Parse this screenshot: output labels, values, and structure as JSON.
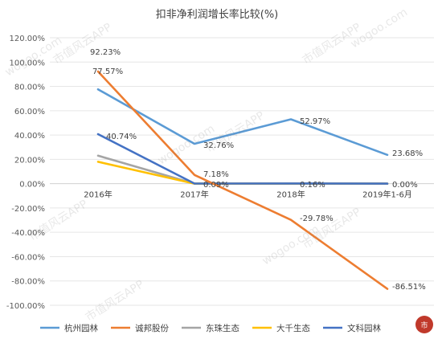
{
  "chart_data": {
    "type": "line",
    "title": "扣非净利润增长率比较(%)",
    "categories": [
      "2016年",
      "2017年",
      "2018年",
      "2019年1-6月"
    ],
    "y_ticks": [
      "120.00%",
      "100.00%",
      "80.00%",
      "60.00%",
      "40.00%",
      "20.00%",
      "0.00%",
      "-20.00%",
      "-40.00%",
      "-60.00%",
      "-80.00%",
      "-100.00%"
    ],
    "ylim": [
      -100,
      120
    ],
    "grid": true,
    "legend_position": "bottom",
    "series": [
      {
        "name": "杭州园林",
        "color": "#5b9bd5",
        "values": [
          77.57,
          32.76,
          52.97,
          23.68
        ],
        "labels": [
          "77.57%",
          "32.76%",
          "52.97%",
          "23.68%"
        ]
      },
      {
        "name": "诚邦股份",
        "color": "#ed7d31",
        "values": [
          92.23,
          7.18,
          -29.78,
          -86.51
        ],
        "labels": [
          "92.23%",
          "7.18%",
          "-29.78%",
          "-86.51%"
        ]
      },
      {
        "name": "东珠生态",
        "color": "#a5a5a5",
        "values": [
          23,
          0,
          0,
          0
        ],
        "labels": []
      },
      {
        "name": "大千生态",
        "color": "#ffc000",
        "values": [
          18,
          0,
          0,
          0
        ],
        "labels": []
      },
      {
        "name": "文科园林",
        "color": "#4472c4",
        "values": [
          40.74,
          0.09,
          0.16,
          0.0
        ],
        "labels": [
          "40.74%",
          "0.09%",
          "0.16%",
          "0.00%"
        ]
      }
    ],
    "watermark": [
      "wogoo.com",
      "市值风云APP"
    ]
  }
}
